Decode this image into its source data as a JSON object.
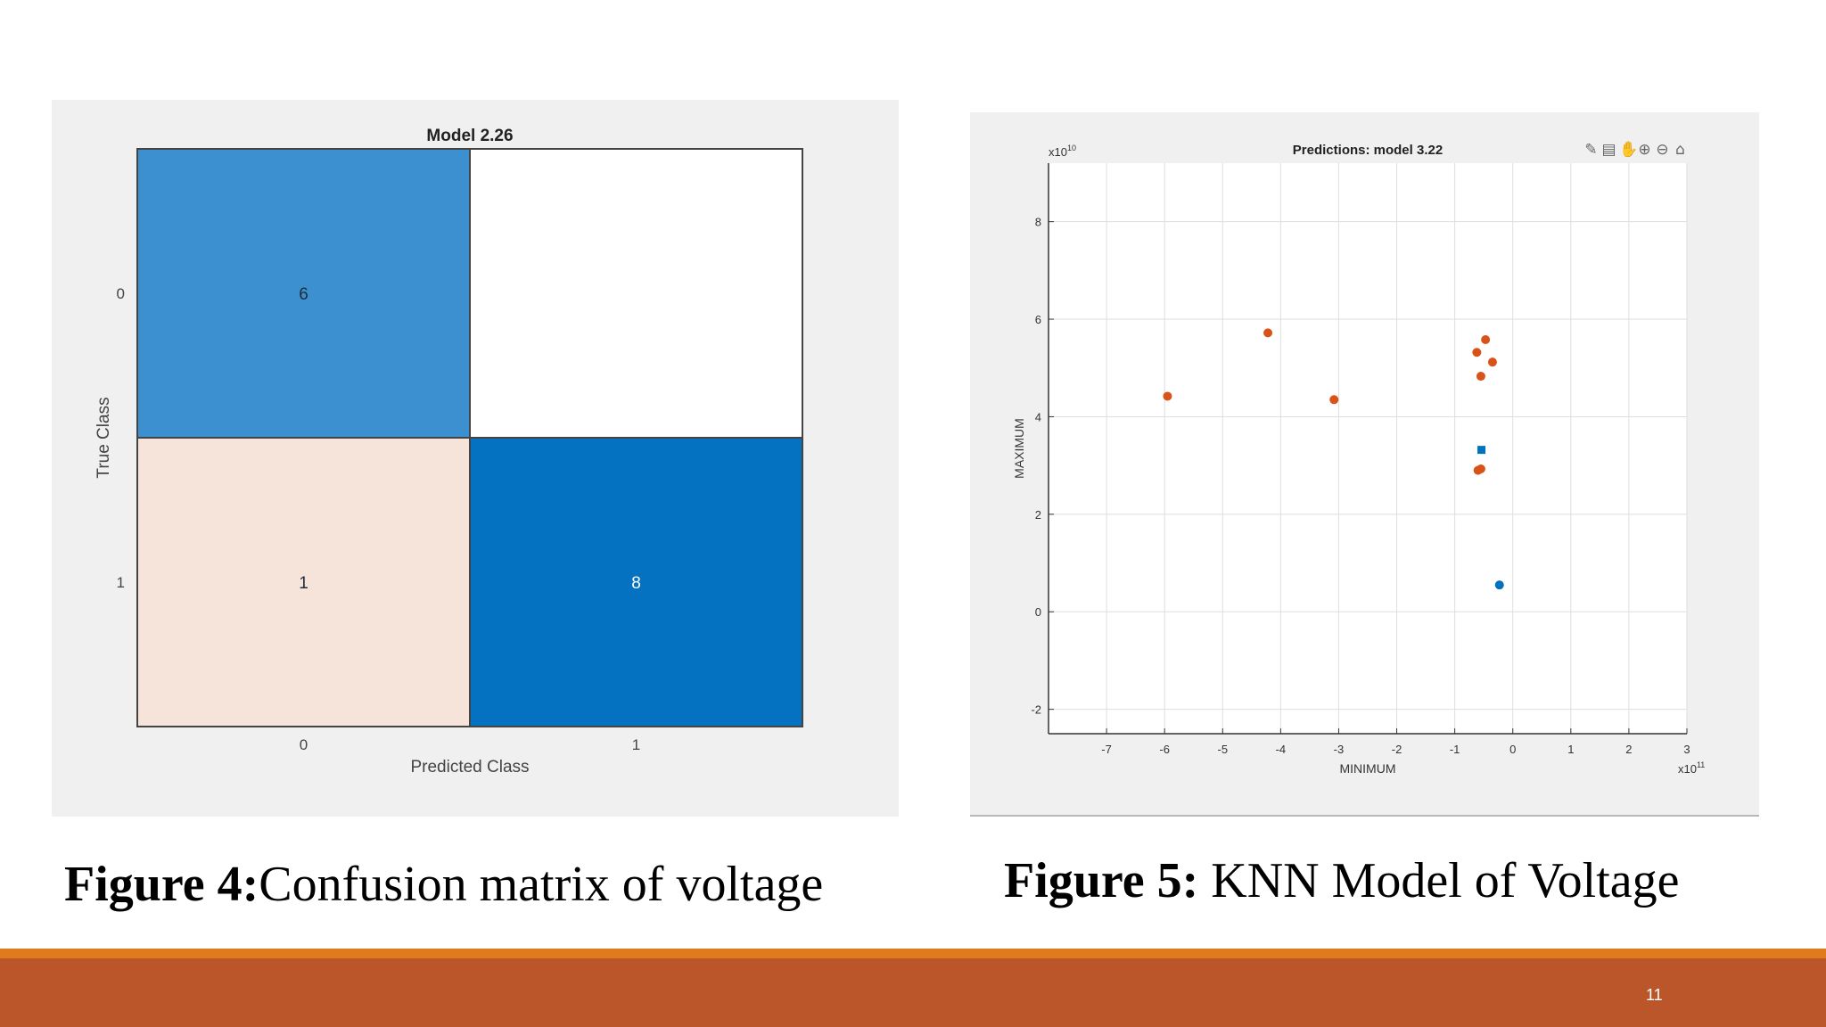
{
  "slide": {
    "page_number": "11"
  },
  "figures": [
    {
      "caption_label": "Figure 4:",
      "caption_text": "Confusion matrix of voltage"
    },
    {
      "caption_label": "Figure 5:",
      "caption_text": " KNN Model of Voltage"
    }
  ],
  "chart_data": [
    {
      "type": "heatmap",
      "title": "Model 2.26",
      "xlabel": "Predicted Class",
      "ylabel": "True Class",
      "x_categories": [
        "0",
        "1"
      ],
      "y_categories": [
        "0",
        "1"
      ],
      "cells": [
        {
          "row": "0",
          "col": "0",
          "value": 6,
          "label": "6",
          "color": "#3c90d0"
        },
        {
          "row": "0",
          "col": "1",
          "value": 0,
          "label": "",
          "color": "#ffffff"
        },
        {
          "row": "1",
          "col": "0",
          "value": 1,
          "label": "1",
          "color": "#f6e3d9"
        },
        {
          "row": "1",
          "col": "1",
          "value": 8,
          "label": "8",
          "color": "#0472c1"
        }
      ]
    },
    {
      "type": "scatter",
      "title": "Predictions: model 3.22",
      "xlabel": "MINIMUM",
      "ylabel": "MAXIMUM",
      "x_exponent": "x10",
      "x_exponent_power": "11",
      "y_exponent": "x10",
      "y_exponent_power": "10",
      "xlim": [
        -8,
        3
      ],
      "ylim": [
        -2.5,
        9.2
      ],
      "xticks": [
        -7,
        -6,
        -5,
        -4,
        -3,
        -2,
        -1,
        0,
        1,
        2,
        3
      ],
      "yticks": [
        -2,
        0,
        2,
        4,
        6,
        8
      ],
      "grid": true,
      "toolbar_icons": [
        "brush-icon",
        "datatip-icon",
        "pan-icon",
        "zoom-in-icon",
        "zoom-out-icon",
        "home-icon"
      ],
      "series": [
        {
          "color": "#d95319",
          "marker": "circle",
          "points": [
            [
              -5.95,
              4.42
            ],
            [
              -4.22,
              5.72
            ],
            [
              -3.08,
              4.35
            ],
            [
              -0.62,
              5.32
            ],
            [
              -0.47,
              5.58
            ],
            [
              -0.35,
              5.12
            ],
            [
              -0.55,
              4.83
            ],
            [
              -0.6,
              2.9
            ],
            [
              -0.55,
              2.93
            ]
          ]
        },
        {
          "color": "#0072bd",
          "marker": "circle",
          "points": [
            [
              -0.23,
              0.55
            ]
          ]
        },
        {
          "color": "#0072bd",
          "marker": "square",
          "points": [
            [
              -0.54,
              3.32
            ]
          ]
        }
      ]
    }
  ]
}
